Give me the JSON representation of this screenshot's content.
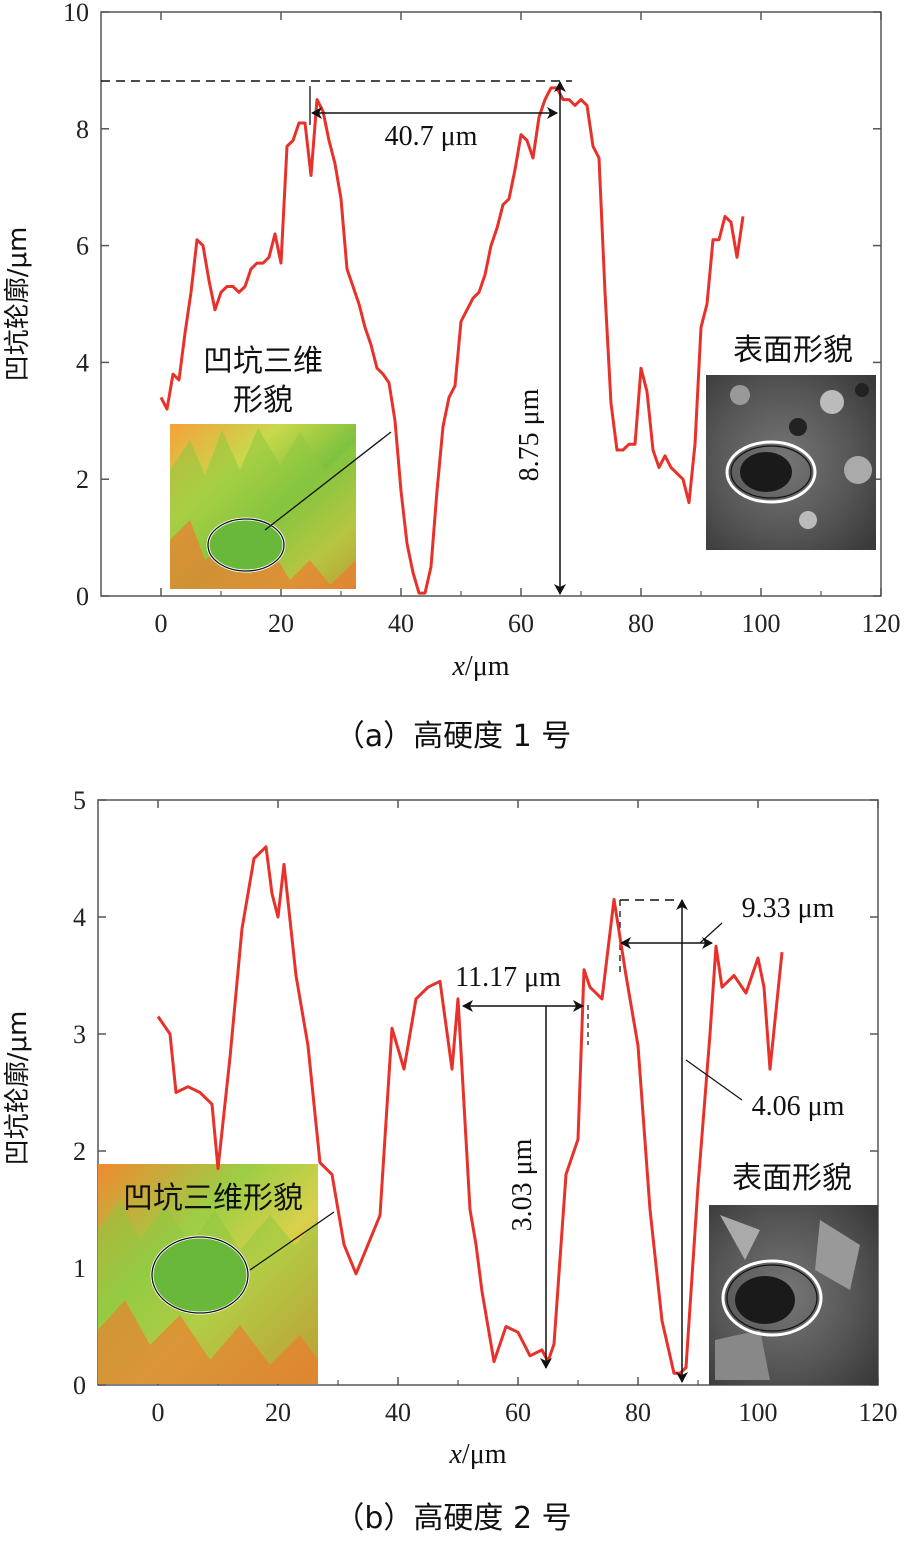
{
  "chart_data": [
    {
      "type": "line",
      "caption": "（a）高硬度 1 号",
      "xlabel_var": "x",
      "xlabel_unit": "/μm",
      "ylabel": "凹坑轮廓/μm",
      "xlim": [
        -10,
        120
      ],
      "ylim": [
        0,
        10
      ],
      "xticks": [
        0,
        20,
        40,
        60,
        80,
        100,
        120
      ],
      "yticks": [
        0,
        2,
        4,
        6,
        8,
        10
      ],
      "series": [
        {
          "name": "profile",
          "color": "#e8312a",
          "x": [
            0,
            1,
            2,
            3,
            4,
            5,
            6,
            7,
            8,
            9,
            10,
            11,
            12,
            13,
            14,
            15,
            16,
            17,
            18,
            19,
            20,
            21,
            22,
            23,
            24,
            25,
            26,
            27,
            28,
            29,
            30,
            31,
            32,
            33,
            34,
            35,
            36,
            37,
            38,
            39,
            40,
            41,
            42,
            43,
            44,
            45,
            46,
            47,
            48,
            49,
            50,
            51,
            52,
            53,
            54,
            55,
            56,
            57,
            58,
            59,
            60,
            61,
            62,
            63,
            64,
            65,
            66,
            67,
            68,
            69,
            70,
            71,
            72,
            73,
            74,
            75,
            76,
            77,
            78,
            79,
            80,
            81,
            82,
            83,
            84,
            85,
            86,
            87,
            88,
            89,
            90,
            91,
            92,
            93,
            94,
            95,
            96,
            97
          ],
          "y": [
            3.4,
            3.2,
            3.8,
            3.7,
            4.5,
            5.2,
            6.1,
            6.0,
            5.4,
            4.9,
            5.2,
            5.3,
            5.3,
            5.2,
            5.3,
            5.6,
            5.7,
            5.7,
            5.8,
            6.2,
            5.7,
            7.7,
            7.8,
            8.1,
            8.1,
            7.2,
            8.5,
            8.3,
            7.8,
            7.4,
            6.8,
            5.6,
            5.3,
            5.0,
            4.6,
            4.3,
            3.9,
            3.8,
            3.65,
            3.0,
            1.8,
            0.9,
            0.4,
            0.05,
            0.05,
            0.5,
            1.8,
            2.9,
            3.4,
            3.6,
            4.7,
            4.9,
            5.1,
            5.2,
            5.5,
            6.0,
            6.3,
            6.7,
            6.8,
            7.3,
            7.9,
            7.8,
            7.5,
            8.2,
            8.5,
            8.7,
            8.7,
            8.5,
            8.5,
            8.4,
            8.5,
            8.4,
            7.7,
            7.5,
            5.2,
            3.3,
            2.5,
            2.5,
            2.6,
            2.6,
            3.9,
            3.5,
            2.5,
            2.2,
            2.4,
            2.2,
            2.1,
            2.0,
            1.6,
            2.6,
            4.6,
            5.0,
            6.1,
            6.1,
            6.5,
            6.4,
            5.8,
            6.5
          ]
        }
      ],
      "annotations": [
        "40.7 μm",
        "8.75 μm"
      ],
      "insets": [
        "凹坑三维",
        "形貌",
        "表面形貌"
      ]
    },
    {
      "type": "line",
      "caption": "（b）高硬度 2 号",
      "xlabel_var": "x",
      "xlabel_unit": "/μm",
      "ylabel": "凹坑轮廓/μm",
      "xlim": [
        -10,
        120
      ],
      "ylim": [
        0,
        5
      ],
      "xticks": [
        0,
        20,
        40,
        60,
        80,
        100,
        120
      ],
      "yticks": [
        0,
        1,
        2,
        3,
        4,
        5
      ],
      "series": [
        {
          "name": "profile",
          "color": "#e8312a",
          "x": [
            0,
            2,
            3,
            5,
            7,
            9,
            10,
            12,
            14,
            16,
            18,
            19,
            20,
            21,
            23,
            25,
            27,
            29,
            31,
            33,
            35,
            37,
            39,
            41,
            43,
            45,
            47,
            49,
            50,
            52,
            53,
            54,
            56,
            58,
            60,
            62,
            64,
            65,
            66,
            68,
            70,
            71,
            72,
            74,
            76,
            78,
            80,
            82,
            84,
            86,
            87,
            88,
            90,
            92,
            93,
            94,
            96,
            98,
            100,
            101,
            102,
            103,
            104
          ],
          "y": [
            3.15,
            3.0,
            2.5,
            2.55,
            2.5,
            2.4,
            1.85,
            2.8,
            3.9,
            4.5,
            4.6,
            4.2,
            4.0,
            4.45,
            3.5,
            2.9,
            1.9,
            1.8,
            1.2,
            0.95,
            1.2,
            1.45,
            3.05,
            2.7,
            3.3,
            3.4,
            3.45,
            2.7,
            3.3,
            1.5,
            1.2,
            0.8,
            0.2,
            0.5,
            0.45,
            0.25,
            0.3,
            0.2,
            0.35,
            1.8,
            2.1,
            3.55,
            3.4,
            3.3,
            4.15,
            3.5,
            2.9,
            1.5,
            0.55,
            0.1,
            0.1,
            0.15,
            1.7,
            3.0,
            3.75,
            3.4,
            3.5,
            3.35,
            3.65,
            3.4,
            2.7,
            3.2,
            3.7
          ]
        }
      ],
      "annotations": [
        "11.17 μm",
        "3.03 μm",
        "9.33 μm",
        "4.06 μm"
      ],
      "insets": [
        "凹坑三维形貌",
        "表面形貌"
      ]
    }
  ]
}
